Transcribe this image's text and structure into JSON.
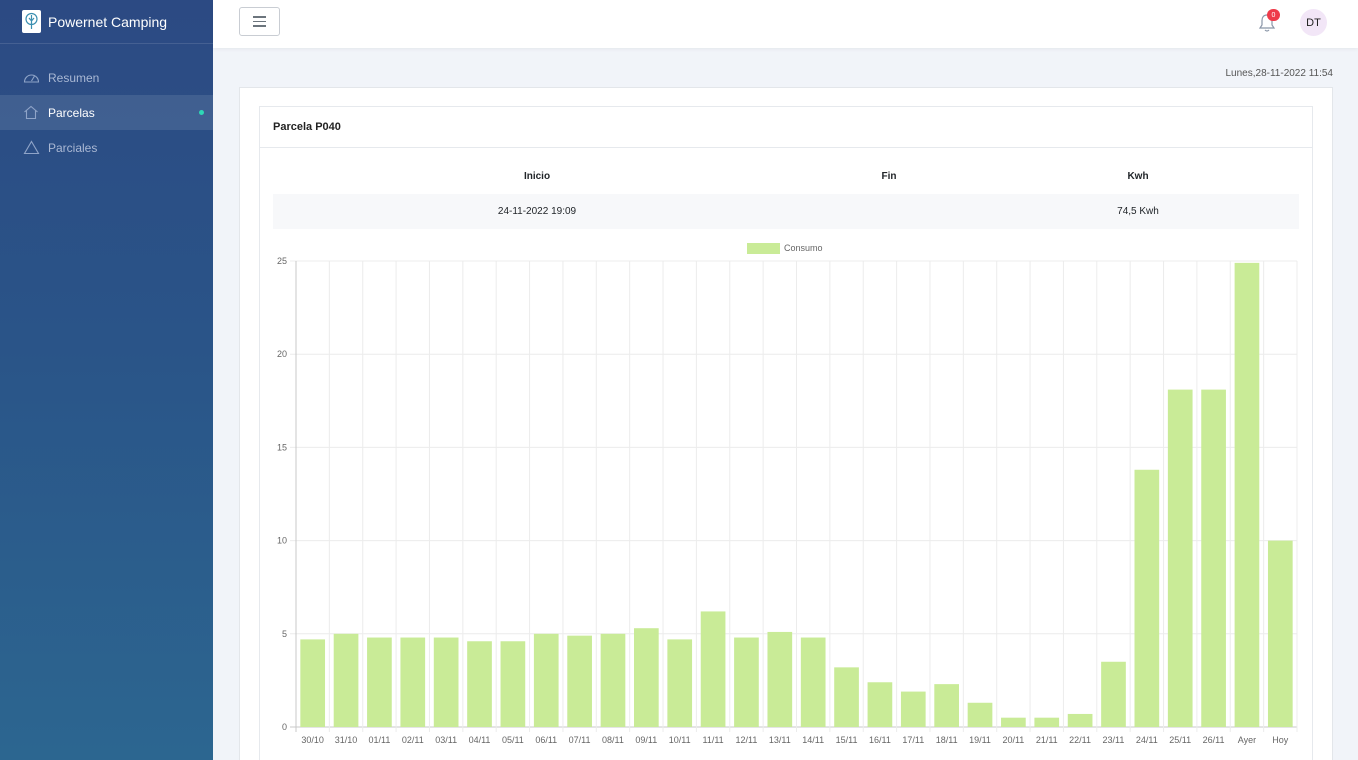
{
  "brand": {
    "name": "Powernet Camping"
  },
  "sidebar": {
    "items": [
      {
        "label": "Resumen",
        "icon": "dashboard-icon",
        "active": false
      },
      {
        "label": "Parcelas",
        "icon": "home-icon",
        "active": true
      },
      {
        "label": "Parciales",
        "icon": "triangle-icon",
        "active": false
      }
    ]
  },
  "topbar": {
    "notifications": "0",
    "avatar_initials": "DT"
  },
  "datetime": "Lunes,28-11-2022 11:54",
  "card": {
    "title": "Parcela P040"
  },
  "table": {
    "headers": [
      "Inicio",
      "Fin",
      "Kwh"
    ],
    "row": {
      "inicio": "24-11-2022 19:09",
      "fin": "",
      "kwh": "74,5 Kwh"
    }
  },
  "colors": {
    "bar": "#c9eb97",
    "accent_dot": "#2ed8b6",
    "badge": "#ee3b4a"
  },
  "chart_data": {
    "type": "bar",
    "legend": "Consumo",
    "categories": [
      "30/10",
      "31/10",
      "01/11",
      "02/11",
      "03/11",
      "04/11",
      "05/11",
      "06/11",
      "07/11",
      "08/11",
      "09/11",
      "10/11",
      "11/11",
      "12/11",
      "13/11",
      "14/11",
      "15/11",
      "16/11",
      "17/11",
      "18/11",
      "19/11",
      "20/11",
      "21/11",
      "22/11",
      "23/11",
      "24/11",
      "25/11",
      "26/11",
      "Ayer",
      "Hoy"
    ],
    "series": [
      {
        "name": "Consumo",
        "values": [
          4.7,
          5.0,
          4.8,
          4.8,
          4.8,
          4.6,
          4.6,
          5.0,
          4.9,
          5.0,
          5.3,
          4.7,
          6.2,
          4.8,
          5.1,
          4.8,
          3.2,
          2.4,
          1.9,
          2.3,
          1.3,
          0.5,
          0.5,
          0.7,
          3.5,
          13.8,
          18.1,
          18.1,
          24.9,
          10.0
        ]
      }
    ],
    "ylim": [
      0,
      25
    ],
    "yticks": [
      "0",
      "5",
      "10",
      "15",
      "20",
      "25"
    ],
    "grid": true
  }
}
